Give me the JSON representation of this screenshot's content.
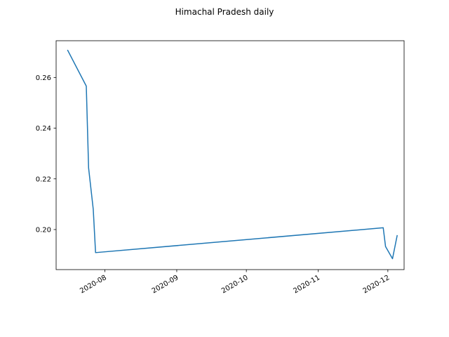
{
  "chart_data": {
    "type": "line",
    "title": "Himachal Pradesh daily",
    "xlabel": "",
    "ylabel": "",
    "x_type": "date",
    "xlim": [
      "2020-07-11",
      "2020-12-08"
    ],
    "ylim": [
      0.1842,
      0.2745
    ],
    "x_ticks": [
      "2020-08-01",
      "2020-09-01",
      "2020-10-01",
      "2020-11-01",
      "2020-12-01"
    ],
    "x_tick_labels": [
      "2020-08",
      "2020-09",
      "2020-10",
      "2020-11",
      "2020-12"
    ],
    "y_ticks": [
      0.2,
      0.22,
      0.24,
      0.26
    ],
    "y_tick_labels": [
      "0.20",
      "0.22",
      "0.24",
      "0.26"
    ],
    "grid": false,
    "legend": null,
    "series": [
      {
        "color": "#1f77b4",
        "x": [
          "2020-07-16",
          "2020-07-24",
          "2020-07-25",
          "2020-07-27",
          "2020-07-28",
          "2020-11-29",
          "2020-11-30",
          "2020-12-03",
          "2020-12-05"
        ],
        "y": [
          0.2707,
          0.2566,
          0.2243,
          0.208,
          0.1909,
          0.2007,
          0.1933,
          0.1885,
          0.1976
        ]
      }
    ]
  }
}
